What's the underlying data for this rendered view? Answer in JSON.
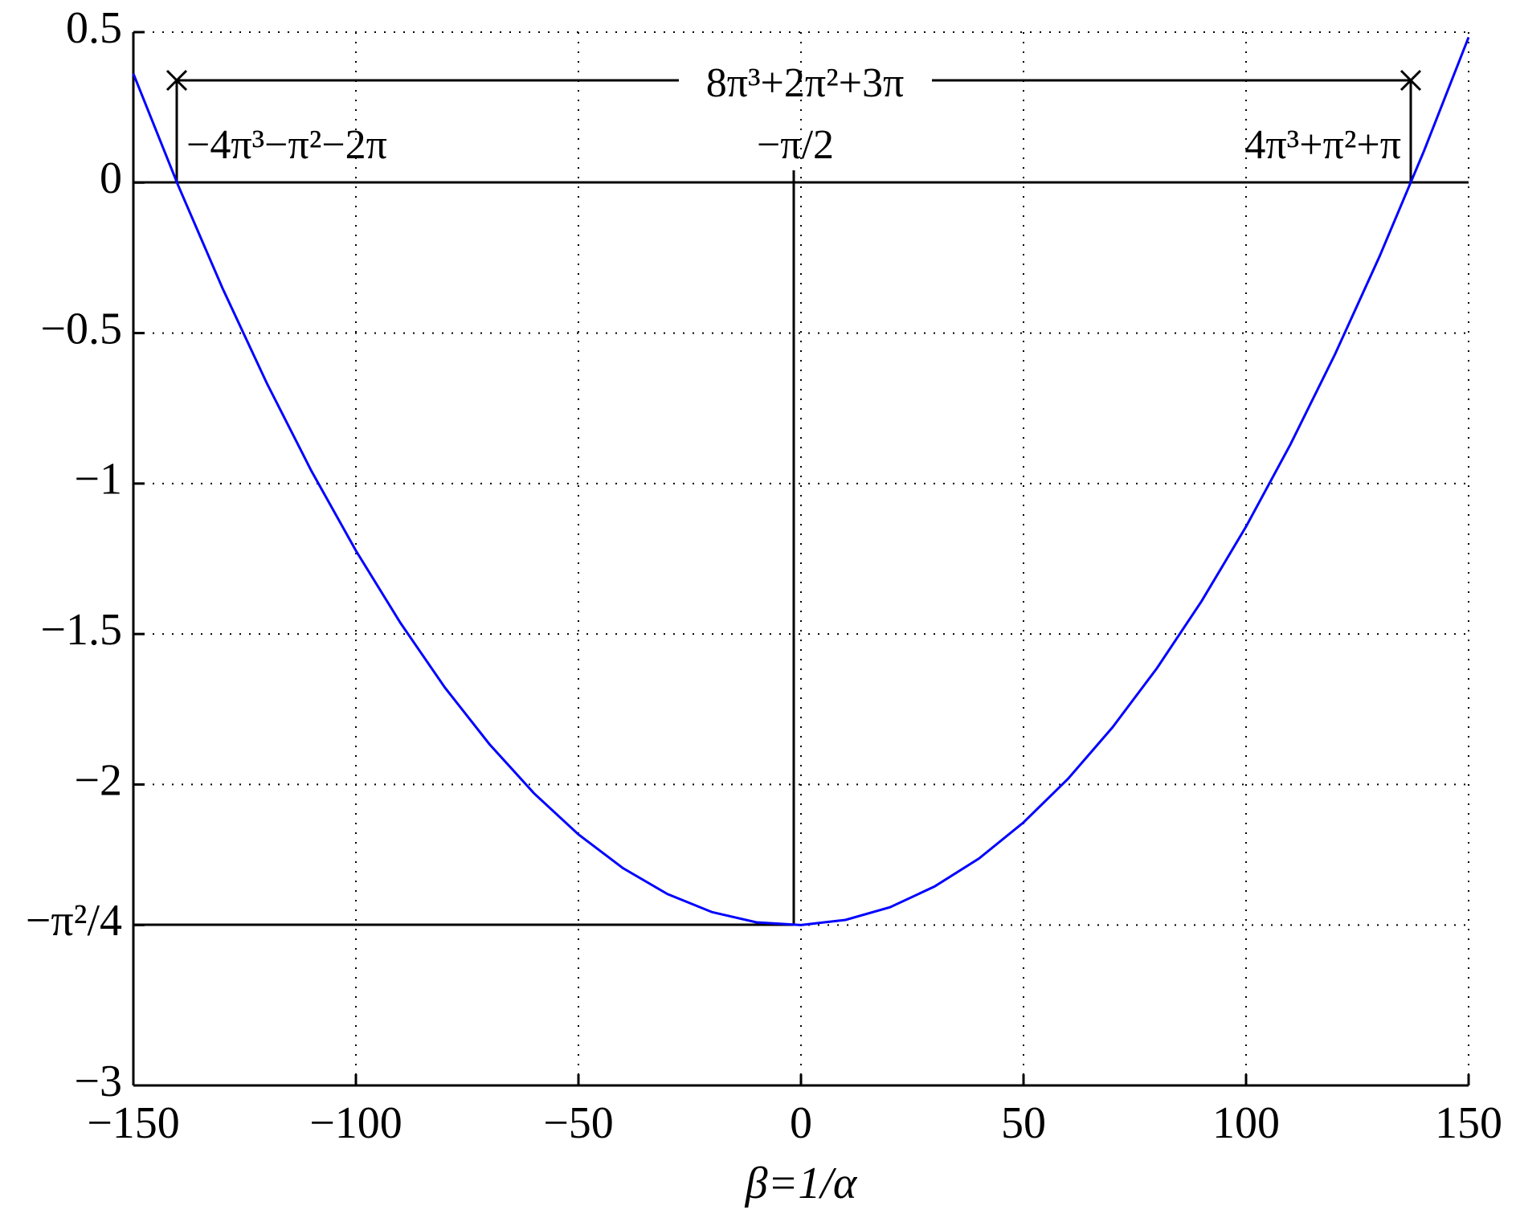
{
  "chart_data": {
    "type": "line",
    "x_label": "β=1/α",
    "annotations": [
      "8π³+2π²+3π",
      "−4π³−π²−2π",
      "−π/2",
      "4π³+π²+π"
    ],
    "x": [
      -150,
      -140,
      -130,
      -120,
      -110,
      -100,
      -90,
      -80,
      -70,
      -60,
      -50,
      -40,
      -30,
      -20,
      -10,
      0,
      10,
      20,
      30,
      40,
      50,
      60,
      70,
      80,
      90,
      100,
      110,
      120,
      130,
      140,
      150
    ],
    "series": [
      {
        "color": "#0000ff",
        "values": [
          0.362,
          -0.007,
          -0.35,
          -0.667,
          -0.958,
          -1.223,
          -1.463,
          -1.678,
          -1.866,
          -2.029,
          -2.166,
          -2.278,
          -2.364,
          -2.424,
          -2.458,
          -2.467,
          -2.45,
          -2.408,
          -2.339,
          -2.246,
          -2.126,
          -1.981,
          -1.81,
          -1.613,
          -1.391,
          -1.143,
          -0.869,
          -0.57,
          -0.245,
          0.106,
          0.483
        ]
      }
    ],
    "xlim": [
      -150,
      150
    ],
    "ylim": [
      -3,
      0.5
    ],
    "xticks": [
      {
        "value": -150,
        "label": "−150"
      },
      {
        "value": -100,
        "label": "−100"
      },
      {
        "value": -50,
        "label": "−50"
      },
      0,
      50,
      100,
      150
    ],
    "yticks": [
      0.5,
      0,
      {
        "value": -0.5,
        "label": "−0.5"
      },
      {
        "value": -1,
        "label": "−1"
      },
      {
        "value": -1.5,
        "label": "−1.5"
      },
      {
        "value": -2,
        "label": "−2"
      },
      {
        "value": -2.467,
        "label": "−π²/4"
      },
      {
        "value": -3,
        "label": "−3"
      }
    ],
    "grid": true
  }
}
